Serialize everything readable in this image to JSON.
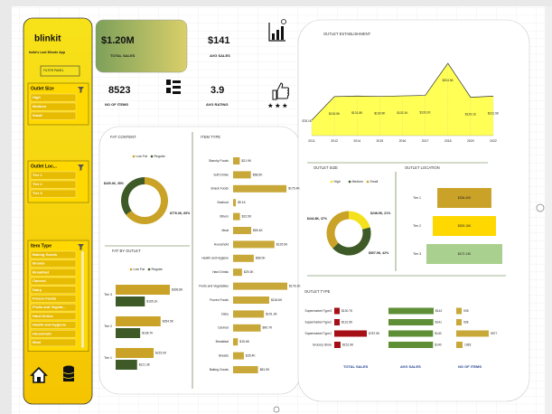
{
  "sidebar": {
    "brand": "blinkit",
    "tagline": "India's Last Minute App",
    "filter_button": "FILTER PANEL",
    "slicers": [
      {
        "title": "Outlet Size",
        "items": [
          "High",
          "Medium",
          "Small"
        ]
      },
      {
        "title": "Outlet Loc...",
        "items": [
          "Tier 1",
          "Tier 2",
          "Tier 3"
        ]
      },
      {
        "title": "Item Type",
        "items": [
          "Baking Goods",
          "Breads",
          "Breakfast",
          "Canned",
          "Dairy",
          "Frozen Foods",
          "Fruits and Vegeta...",
          "Hard Drinks",
          "Health and Hygiene",
          "Household",
          "Meat"
        ]
      }
    ]
  },
  "kpis": [
    {
      "value": "$1.20M",
      "label": "TOTAL SALES"
    },
    {
      "value": "$141",
      "label": "AVG SALES"
    },
    {
      "value": "8523",
      "label": "NO OF ITEMS"
    },
    {
      "value": "3.9",
      "label": "AVG RATING"
    }
  ],
  "chart_data": [
    {
      "type": "line",
      "title": "OUTLET ESTABLISHMENT",
      "categories": [
        "2011",
        "2012",
        "2014",
        "2015",
        "2016",
        "2017",
        "2018",
        "2020",
        "2022"
      ],
      "values": [
        78.1,
        130.5,
        131.8,
        130.9,
        132.1,
        133.1,
        204.5,
        129.1,
        131.5
      ],
      "value_labels": [
        "$78.1K",
        "$130.5K",
        "$131.8K",
        "$130.9K",
        "$132.1K",
        "$133.1K",
        "$204.5K",
        "$129.1K",
        "$131.5K"
      ],
      "color": "#ffff55",
      "line_color": "#333333"
    },
    {
      "type": "donut",
      "title": "FAT CONTENT",
      "categories": [
        "Low Fat",
        "Regular"
      ],
      "values": [
        776.3,
        425.4
      ],
      "value_labels": [
        "$776.3K, 65%",
        "$425.4K, 35%"
      ],
      "colors": [
        "#c9a227",
        "#3d5a27"
      ]
    },
    {
      "type": "hbar",
      "title": "ITEM TYPE",
      "categories": [
        "Starchy Foods",
        "Soft Drinks",
        "Snack Foods",
        "Seafood",
        "Others",
        "Meat",
        "Household",
        "Health and Hygiene",
        "Hard Drinks",
        "Fruits and Vegetables",
        "Frozen Foods",
        "Dairy",
        "Canned",
        "Breakfast",
        "Breads",
        "Baking Goods"
      ],
      "values": [
        21.9,
        58.5,
        175.4,
        9.1,
        22.5,
        59.4,
        135.9,
        68.0,
        29.3,
        178.1,
        118.6,
        101.3,
        90.7,
        15.6,
        35.4,
        81.9
      ],
      "value_labels": [
        "$21.9K",
        "$58.5K",
        "$175.4K",
        "$9.1K",
        "$22.5K",
        "$59.4K",
        "$135.9K",
        "$68.0K",
        "$29.3K",
        "$178.1K",
        "$118.6K",
        "$101.3K",
        "$90.7K",
        "$15.6K",
        "$35.4K",
        "$81.9K"
      ],
      "color": "#c9a83a"
    },
    {
      "type": "grouped-hbar",
      "title": "FAT BY OUTLET",
      "categories": [
        "Tier 3",
        "Tier 2",
        "Tier 1"
      ],
      "series": [
        {
          "name": "Low Fat",
          "color": "#c9a227",
          "values": [
            306.8,
            254.5,
            215.0
          ],
          "value_labels": [
            "$306.8K",
            "$254.5K",
            "$215.0K"
          ]
        },
        {
          "name": "Regular",
          "color": "#3d5a27",
          "values": [
            165.1,
            138.7,
            121.3
          ],
          "value_labels": [
            "$165.1K",
            "$138.7K",
            "$121.3K"
          ]
        }
      ]
    },
    {
      "type": "donut",
      "title": "OUTLET SIZE",
      "categories": [
        "High",
        "Medium",
        "Small"
      ],
      "values": [
        248.9,
        507.9,
        444.8
      ],
      "value_labels": [
        "$248.9K, 21%",
        "$507.9K, 42%",
        "$444.8K, 37%"
      ],
      "colors": [
        "#f5e11b",
        "#3d5a27",
        "#c9a227"
      ]
    },
    {
      "type": "centered-bar",
      "title": "OUTLET LOCATION",
      "categories": [
        "Tier 1",
        "Tier 2",
        "Tier 3"
      ],
      "values": [
        336.4,
        393.2,
        472.1
      ],
      "value_labels": [
        "$336.40K",
        "$393.15K",
        "$472.13K"
      ],
      "colors": [
        "#c9a227",
        "#ffd800",
        "#a9d08e"
      ]
    },
    {
      "type": "table-bars",
      "title": "OUTLET TYPE",
      "categories": [
        "Supermarket Type3",
        "Supermarket Type2",
        "Supermarket Type1",
        "Grocery Store"
      ],
      "series": [
        {
          "name": "TOTAL SALES",
          "color": "#a50f15",
          "values": [
            130.7,
            131.5,
            787.5,
            151.9
          ],
          "value_labels": [
            "$130.7K",
            "$131.5K",
            "$787.5K",
            "$151.9K"
          ]
        },
        {
          "name": "AVG SALES",
          "color": "#5e8f36",
          "values": [
            142,
            141,
            140,
            140
          ],
          "value_labels": [
            "$142",
            "$141",
            "$140",
            "$140"
          ]
        },
        {
          "name": "NO OF ITEMS",
          "color": "#c9a83a",
          "values": [
            935,
            928,
            5577,
            1083
          ]
        }
      ]
    }
  ]
}
